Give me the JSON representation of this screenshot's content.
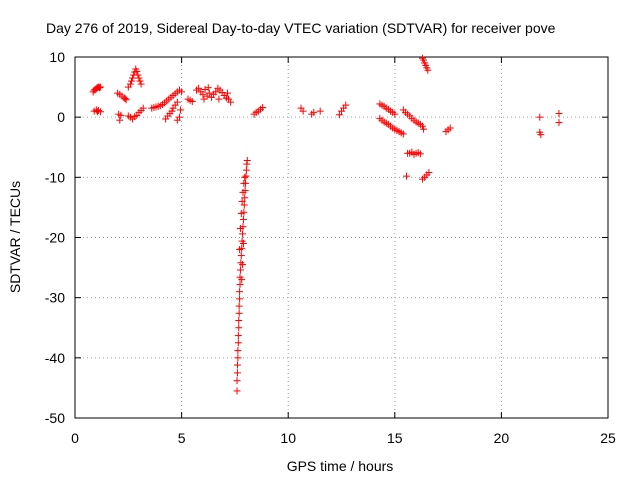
{
  "chart_data": {
    "type": "scatter",
    "title": "Day 276 of 2019, Sidereal Day-to-day VTEC variation (SDTVAR) for receiver pove",
    "xlabel": "GPS time / hours",
    "ylabel": "SDTVAR / TECUs",
    "xlim": [
      0,
      25
    ],
    "ylim": [
      -50,
      10
    ],
    "xticks": [
      0,
      5,
      10,
      15,
      20,
      25
    ],
    "yticks": [
      -50,
      -40,
      -30,
      -20,
      -10,
      0,
      10
    ],
    "xtick_labels": [
      "0",
      "5",
      "10",
      "15",
      "20",
      "25"
    ],
    "ytick_labels": [
      "-50",
      "-40",
      "-30",
      "-20",
      "-10",
      "0",
      "10"
    ],
    "grid": true,
    "marker": "+",
    "color": "#ff0000",
    "series": [
      {
        "name": "SDTVAR",
        "points": [
          [
            0.85,
            4.2
          ],
          [
            0.9,
            4.5
          ],
          [
            0.95,
            4.6
          ],
          [
            1.0,
            4.8
          ],
          [
            1.05,
            4.9
          ],
          [
            1.1,
            5.0
          ],
          [
            1.15,
            4.9
          ],
          [
            1.2,
            5.0
          ],
          [
            0.9,
            1.0
          ],
          [
            1.0,
            1.2
          ],
          [
            1.05,
            0.9
          ],
          [
            1.1,
            1.1
          ],
          [
            1.2,
            0.9
          ],
          [
            2.0,
            4.0
          ],
          [
            2.1,
            3.8
          ],
          [
            2.2,
            3.5
          ],
          [
            2.3,
            3.2
          ],
          [
            2.4,
            2.9
          ],
          [
            2.35,
            3.1
          ],
          [
            2.05,
            0.5
          ],
          [
            2.1,
            -0.5
          ],
          [
            2.15,
            0.3
          ],
          [
            2.5,
            5.0
          ],
          [
            2.6,
            5.5
          ],
          [
            2.65,
            6.0
          ],
          [
            2.7,
            6.5
          ],
          [
            2.75,
            7.0
          ],
          [
            2.8,
            7.5
          ],
          [
            2.85,
            8.0
          ],
          [
            2.9,
            7.6
          ],
          [
            2.95,
            7.0
          ],
          [
            3.0,
            6.5
          ],
          [
            3.05,
            6.0
          ],
          [
            3.1,
            5.5
          ],
          [
            2.5,
            0.2
          ],
          [
            2.6,
            0.0
          ],
          [
            2.7,
            -0.3
          ],
          [
            2.8,
            0.1
          ],
          [
            2.9,
            0.3
          ],
          [
            3.0,
            0.8
          ],
          [
            3.1,
            1.1
          ],
          [
            3.2,
            1.5
          ],
          [
            3.6,
            1.5
          ],
          [
            3.7,
            1.6
          ],
          [
            3.8,
            1.7
          ],
          [
            3.9,
            1.8
          ],
          [
            4.0,
            1.9
          ],
          [
            4.1,
            2.1
          ],
          [
            4.2,
            2.4
          ],
          [
            4.3,
            2.7
          ],
          [
            4.4,
            3.0
          ],
          [
            4.5,
            3.3
          ],
          [
            4.6,
            3.6
          ],
          [
            4.7,
            3.9
          ],
          [
            4.8,
            4.2
          ],
          [
            4.9,
            4.5
          ],
          [
            5.0,
            4.2
          ],
          [
            4.25,
            -0.3
          ],
          [
            4.35,
            0.2
          ],
          [
            4.45,
            0.6
          ],
          [
            4.55,
            1.0
          ],
          [
            4.6,
            1.5
          ],
          [
            4.7,
            2.0
          ],
          [
            4.8,
            2.5
          ],
          [
            4.9,
            0.0
          ],
          [
            4.8,
            -0.5
          ],
          [
            4.95,
            1.2
          ],
          [
            5.3,
            3.0
          ],
          [
            5.4,
            2.8
          ],
          [
            5.5,
            2.6
          ],
          [
            5.7,
            4.5
          ],
          [
            5.8,
            4.8
          ],
          [
            5.9,
            4.2
          ],
          [
            6.0,
            3.8
          ],
          [
            6.1,
            4.6
          ],
          [
            6.2,
            3.5
          ],
          [
            6.3,
            4.0
          ],
          [
            6.4,
            3.3
          ],
          [
            6.5,
            3.8
          ],
          [
            6.6,
            4.2
          ],
          [
            6.7,
            4.8
          ],
          [
            6.8,
            4.5
          ],
          [
            6.9,
            4.1
          ],
          [
            7.0,
            3.6
          ],
          [
            7.1,
            3.2
          ],
          [
            7.2,
            3.0
          ],
          [
            7.3,
            2.5
          ],
          [
            6.05,
            3.0
          ],
          [
            6.25,
            4.9
          ],
          [
            6.75,
            3.0
          ],
          [
            7.15,
            4.0
          ],
          [
            7.6,
            -45.5
          ],
          [
            7.6,
            -43.8
          ],
          [
            7.62,
            -42.5
          ],
          [
            7.62,
            -41.2
          ],
          [
            7.64,
            -40.0
          ],
          [
            7.64,
            -38.8
          ],
          [
            7.66,
            -37.5
          ],
          [
            7.66,
            -36.3
          ],
          [
            7.68,
            -35.0
          ],
          [
            7.68,
            -33.8
          ],
          [
            7.7,
            -32.6
          ],
          [
            7.7,
            -31.4
          ],
          [
            7.72,
            -30.2
          ],
          [
            7.72,
            -29.0
          ],
          [
            7.74,
            -27.8
          ],
          [
            7.74,
            -26.6
          ],
          [
            7.76,
            -25.4
          ],
          [
            7.78,
            -24.2
          ],
          [
            7.8,
            -23.0
          ],
          [
            7.82,
            -21.8
          ],
          [
            7.84,
            -20.6
          ],
          [
            7.86,
            -19.4
          ],
          [
            7.88,
            -18.2
          ],
          [
            7.9,
            -17.0
          ],
          [
            7.92,
            -15.8
          ],
          [
            7.94,
            -14.6
          ],
          [
            7.96,
            -13.4
          ],
          [
            7.98,
            -12.2
          ],
          [
            8.0,
            -11.0
          ],
          [
            8.02,
            -9.8
          ],
          [
            8.04,
            -8.8
          ],
          [
            8.06,
            -7.8
          ],
          [
            8.08,
            -7.2
          ],
          [
            7.72,
            -22.0
          ],
          [
            7.76,
            -18.5
          ],
          [
            7.8,
            -16.0
          ],
          [
            7.84,
            -14.0
          ],
          [
            7.88,
            -12.5
          ],
          [
            7.92,
            -11.0
          ],
          [
            7.96,
            -10.0
          ],
          [
            7.82,
            -27.0
          ],
          [
            7.86,
            -24.5
          ],
          [
            7.9,
            -21.0
          ],
          [
            8.4,
            0.5
          ],
          [
            8.5,
            0.8
          ],
          [
            8.6,
            1.0
          ],
          [
            8.7,
            1.3
          ],
          [
            8.8,
            1.6
          ],
          [
            10.6,
            1.5
          ],
          [
            10.7,
            1.0
          ],
          [
            11.1,
            0.5
          ],
          [
            11.2,
            0.8
          ],
          [
            11.5,
            1.0
          ],
          [
            12.4,
            0.4
          ],
          [
            12.5,
            1.0
          ],
          [
            12.6,
            1.5
          ],
          [
            12.7,
            2.0
          ],
          [
            14.3,
            2.2
          ],
          [
            14.4,
            2.0
          ],
          [
            14.5,
            1.8
          ],
          [
            14.6,
            1.5
          ],
          [
            14.7,
            1.3
          ],
          [
            14.8,
            1.0
          ],
          [
            14.9,
            0.8
          ],
          [
            15.0,
            0.5
          ],
          [
            14.3,
            -0.2
          ],
          [
            14.4,
            -0.5
          ],
          [
            14.5,
            -0.8
          ],
          [
            14.6,
            -1.0
          ],
          [
            14.7,
            -1.2
          ],
          [
            14.8,
            -1.5
          ],
          [
            14.9,
            -1.8
          ],
          [
            15.0,
            -2.0
          ],
          [
            15.1,
            -2.2
          ],
          [
            15.2,
            -2.4
          ],
          [
            15.3,
            -2.6
          ],
          [
            15.4,
            -2.8
          ],
          [
            15.4,
            1.2
          ],
          [
            15.5,
            0.8
          ],
          [
            15.6,
            0.5
          ],
          [
            15.7,
            0.2
          ],
          [
            15.8,
            -0.2
          ],
          [
            15.9,
            -0.5
          ],
          [
            16.0,
            -0.8
          ],
          [
            16.1,
            -1.0
          ],
          [
            16.2,
            -1.2
          ],
          [
            16.3,
            -1.5
          ],
          [
            16.35,
            -2.0
          ],
          [
            15.6,
            -6.0
          ],
          [
            15.7,
            -6.0
          ],
          [
            15.8,
            -5.8
          ],
          [
            15.9,
            -6.2
          ],
          [
            16.0,
            -6.0
          ],
          [
            16.1,
            -5.9
          ],
          [
            16.2,
            -6.1
          ],
          [
            15.55,
            -9.8
          ],
          [
            16.3,
            9.8
          ],
          [
            16.35,
            9.5
          ],
          [
            16.4,
            9.0
          ],
          [
            16.45,
            8.6
          ],
          [
            16.5,
            8.2
          ],
          [
            16.55,
            7.8
          ],
          [
            16.3,
            -10.3
          ],
          [
            16.4,
            -10.0
          ],
          [
            16.5,
            -9.6
          ],
          [
            16.6,
            -9.2
          ],
          [
            17.4,
            -2.4
          ],
          [
            17.5,
            -2.1
          ],
          [
            17.6,
            -1.8
          ],
          [
            21.8,
            0.0
          ],
          [
            21.8,
            -2.5
          ],
          [
            21.85,
            -2.9
          ],
          [
            22.7,
            0.6
          ],
          [
            22.7,
            -0.9
          ]
        ]
      }
    ]
  }
}
